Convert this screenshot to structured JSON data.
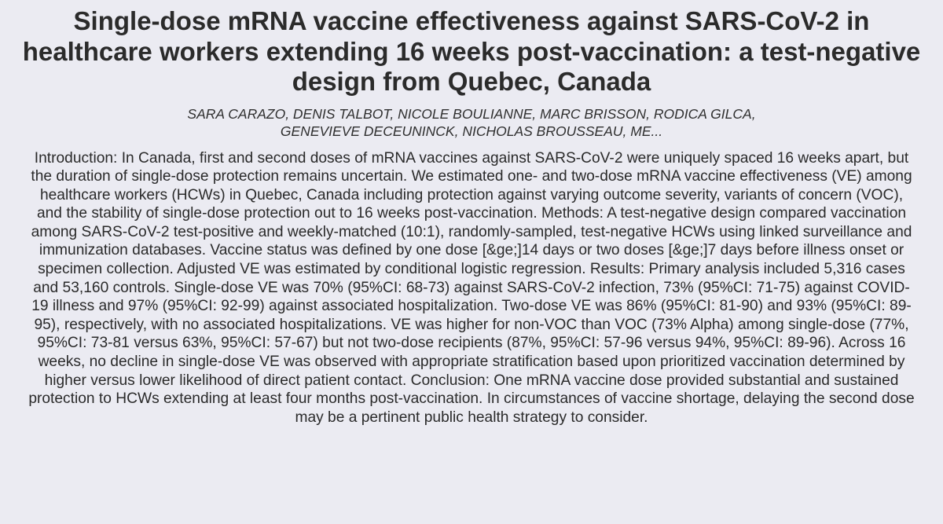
{
  "paper": {
    "title": "Single-dose mRNA vaccine effectiveness against SARS-CoV-2 in healthcare workers extending 16 weeks post-vaccination: a test-negative design from Quebec, Canada",
    "authors": "SARA CARAZO, DENIS TALBOT, NICOLE BOULIANNE, MARC BRISSON, RODICA GILCA, GENEVIEVE DECEUNINCK, NICHOLAS BROUSSEAU, ME...",
    "abstract": "Introduction: In Canada, first and second doses of mRNA vaccines against SARS-CoV-2 were uniquely spaced 16 weeks apart, but the duration of single-dose protection remains uncertain. We estimated one- and two-dose mRNA vaccine effectiveness (VE) among healthcare workers (HCWs) in Quebec, Canada including protection against varying outcome severity, variants of concern (VOC), and the stability of single-dose protection out to 16 weeks post-vaccination. Methods: A test-negative design compared vaccination among SARS-CoV-2 test-positive and weekly-matched (10:1), randomly-sampled, test-negative HCWs using linked surveillance and immunization databases. Vaccine status was defined by one dose [&ge;]14 days or two doses [&ge;]7 days before illness onset or specimen collection. Adjusted VE was estimated by conditional logistic regression. Results: Primary analysis included 5,316 cases and 53,160 controls. Single-dose VE was 70% (95%CI: 68-73) against SARS-CoV-2 infection, 73% (95%CI: 71-75) against COVID-19 illness and 97% (95%CI: 92-99) against associated hospitalization. Two-dose VE was 86% (95%CI: 81-90) and 93% (95%CI: 89-95), respectively, with no associated hospitalizations. VE was higher for non-VOC than VOC (73% Alpha) among single-dose (77%, 95%CI: 73-81 versus 63%, 95%CI: 57-67) but not two-dose recipients (87%, 95%CI: 57-96 versus 94%, 95%CI: 89-96). Across 16 weeks, no decline in single-dose VE was observed with appropriate stratification based upon prioritized vaccination determined by higher versus lower likelihood of direct patient contact. Conclusion: One mRNA vaccine dose provided substantial and sustained protection to HCWs extending at least four months post-vaccination. In circumstances of vaccine shortage, delaying the second dose may be a pertinent public health strategy to consider."
  }
}
